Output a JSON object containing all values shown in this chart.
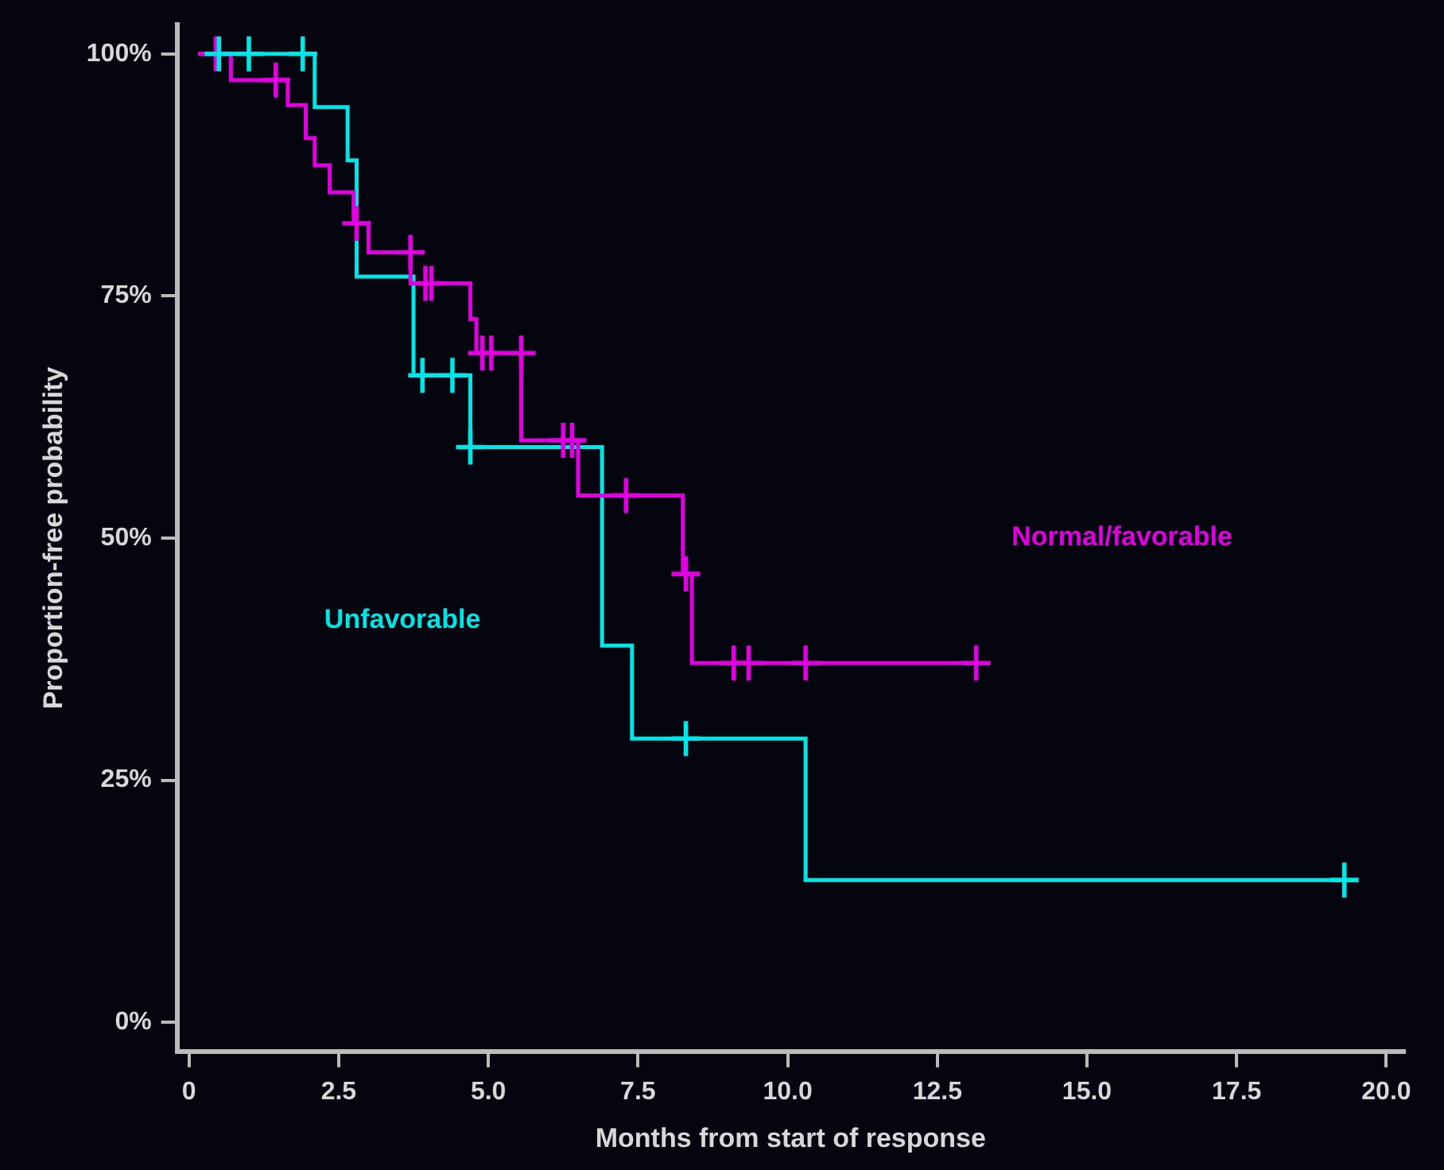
{
  "chart_data": {
    "type": "step",
    "xlabel": "Months from start of response",
    "ylabel": "Proportion-free probability",
    "xlim": [
      -0.2,
      20.3
    ],
    "ylim": [
      -3,
      103
    ],
    "xticks": [
      0,
      {
        "value": 2.5,
        "label": "2.5"
      },
      {
        "value": 5,
        "label": "5.0"
      },
      {
        "value": 7.5,
        "label": "7.5"
      },
      {
        "value": 10,
        "label": "10.0"
      },
      {
        "value": 12.5,
        "label": "12.5"
      },
      {
        "value": 15,
        "label": "15.0"
      },
      {
        "value": 17.5,
        "label": "17.5"
      },
      {
        "value": 20,
        "label": "20.0"
      }
    ],
    "yticks": [
      {
        "value": 0,
        "label": "0%"
      },
      {
        "value": 25,
        "label": "25%"
      },
      {
        "value": 50,
        "label": "50%"
      },
      {
        "value": 75,
        "label": "75%"
      },
      {
        "value": 100,
        "label": "100%"
      }
    ],
    "grid": false,
    "legend": false,
    "series": [
      {
        "name": "Normal/favorable",
        "type": "step",
        "color": "#e000e0",
        "marker": "none",
        "x": [
          0.15,
          0.7,
          1.65,
          1.95,
          2.1,
          2.35,
          2.75,
          3.0,
          3.7,
          4.7,
          4.8,
          5.55,
          6.5,
          8.25,
          8.4,
          13.15
        ],
        "values": [
          100,
          97.3,
          94.7,
          91.3,
          88.5,
          85.7,
          82.5,
          79.5,
          76.3,
          72.6,
          69.1,
          60.1,
          54.4,
          46.3,
          37.1,
          37.1
        ]
      },
      {
        "name": "Unfavorable",
        "type": "step",
        "color": "#00e5e5",
        "marker": "none",
        "x": [
          0.2,
          2.1,
          2.65,
          2.8,
          3.75,
          4.7,
          6.9,
          7.4,
          10.3,
          19.3
        ],
        "values": [
          100,
          94.5,
          89,
          77,
          66.8,
          59.4,
          38.9,
          29.3,
          14.7,
          14.7
        ]
      },
      {
        "type": "scatter",
        "color": "#e000e0",
        "marker": "cross",
        "x": [
          0.45,
          1.45,
          2.8,
          3.7,
          3.95,
          4.05,
          4.9,
          5.05,
          5.55,
          6.25,
          6.4,
          7.3,
          8.3,
          9.1,
          9.35,
          10.3,
          13.15
        ],
        "values": [
          100,
          97.3,
          82.5,
          79.5,
          76.3,
          76.3,
          69.1,
          69.1,
          69.1,
          60.1,
          60.1,
          54.4,
          46.3,
          37.1,
          37.1,
          37.1,
          37.1
        ]
      },
      {
        "type": "scatter",
        "color": "#00e5e5",
        "marker": "cross",
        "x": [
          0.5,
          1.0,
          1.9,
          3.9,
          4.4,
          4.7,
          8.3,
          19.3
        ],
        "values": [
          100,
          100,
          100,
          66.8,
          66.8,
          59.4,
          29.3,
          14.7
        ]
      }
    ]
  }
}
